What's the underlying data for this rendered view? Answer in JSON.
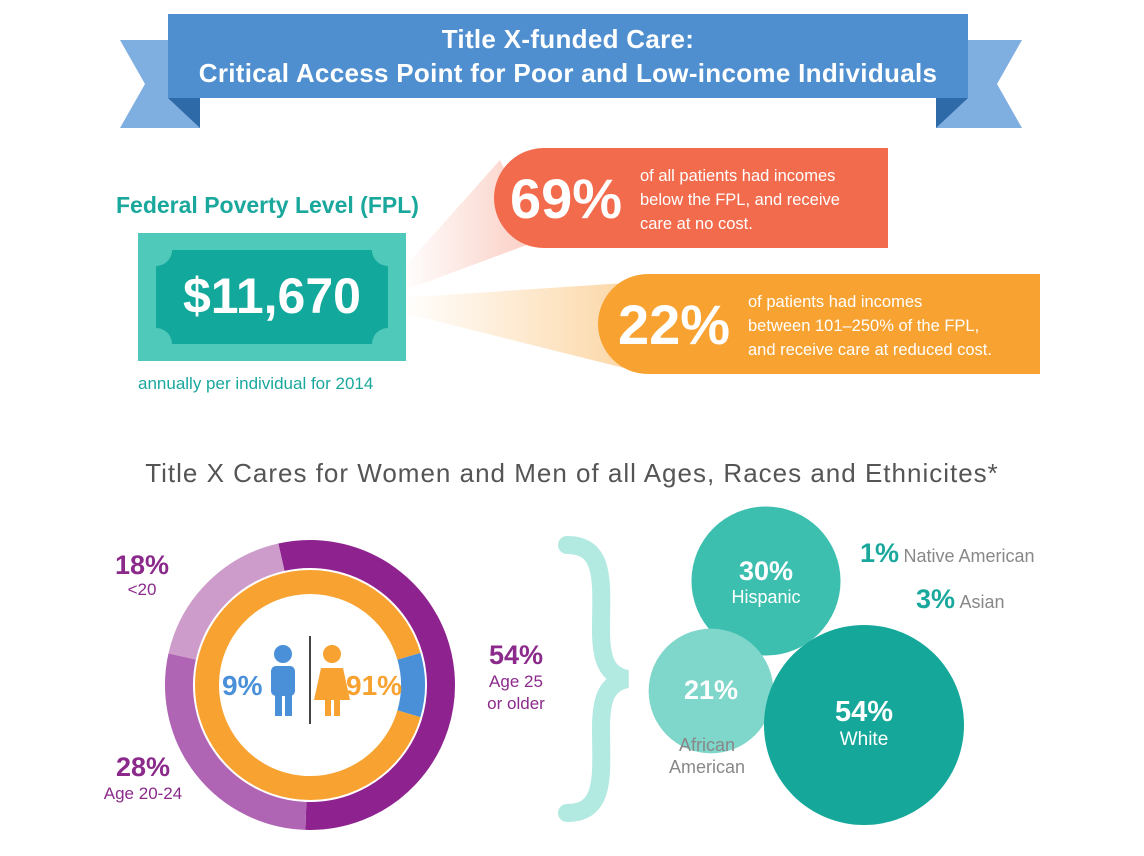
{
  "banner": {
    "line1": "Title X-funded Care:",
    "line2": "Critical Access Point for Poor and Low-income Individuals"
  },
  "fpl": {
    "heading": "Federal Poverty Level (FPL)",
    "amount": "$11,670",
    "note": "annually per individual for 2014"
  },
  "stats": [
    {
      "pct": "69%",
      "lines": [
        "of all patients had incomes",
        "below the FPL, and receive",
        "care at no cost."
      ]
    },
    {
      "pct": "22%",
      "lines": [
        "of patients had incomes",
        "between 101–250% of the FPL,",
        "and receive care at reduced cost."
      ]
    }
  ],
  "section_title": "Title X Cares for Women and Men of all Ages, Races and Ethnicites*",
  "colors": {
    "banner": "#4f8fcf",
    "teal": "#1aa89d",
    "coral": "#f26b4c",
    "orange": "#f8a231",
    "purple": "#8b2a8b",
    "blue": "#4a90d9"
  },
  "icons": [
    "male-icon",
    "female-icon",
    "right-brace-icon"
  ],
  "chart_data": [
    {
      "type": "pie",
      "title": "",
      "categories": [
        "<20",
        "Age 20-24",
        "Age 25 or older"
      ],
      "values": [
        18,
        28,
        54
      ],
      "labels": [
        "18%",
        "28%",
        "54%"
      ],
      "sublabels": [
        "<20",
        "Age 20-24",
        "Age 25\nor older"
      ],
      "colors": [
        "#cd9ccb",
        "#b064b4",
        "#8e2390"
      ]
    },
    {
      "type": "pie",
      "title": "",
      "categories": [
        "Male",
        "Female"
      ],
      "values": [
        9,
        91
      ],
      "labels": [
        "9%",
        "91%"
      ],
      "colors": [
        "#4a90d9",
        "#f8a231"
      ]
    },
    {
      "type": "scatter",
      "title": "",
      "categories": [
        "Hispanic",
        "African American",
        "White",
        "Native American",
        "Asian"
      ],
      "values": [
        30,
        21,
        54,
        1,
        3
      ],
      "labels": [
        "30%",
        "21%",
        "54%",
        "1%",
        "3%"
      ]
    }
  ]
}
